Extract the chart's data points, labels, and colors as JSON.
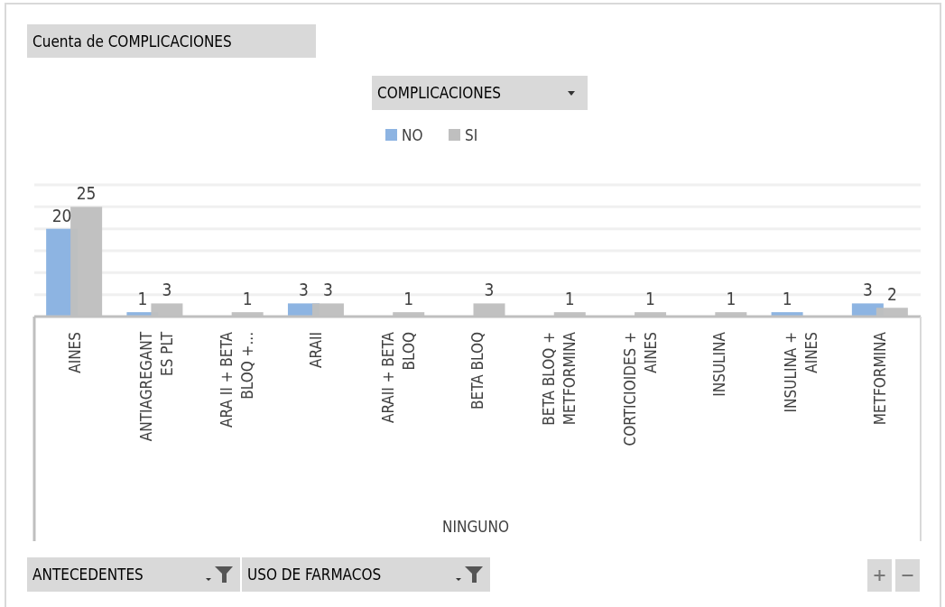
{
  "chart_data": {
    "type": "bar",
    "title": "Cuenta de COMPLICACIONES",
    "legend_title": "COMPLICACIONES",
    "categories": [
      "AINES",
      "ANTIAGREGANT\nES PLT",
      "ARA II + BETA\nBLOQ +...",
      "ARAII",
      "ARAII + BETA\nBLOQ",
      "BETA BLOQ",
      "BETA BLOQ +\nMETFORMINA",
      "CORTICIOIDES +\nAINES",
      "INSULINA",
      "INSULINA +\nAINES",
      "METFORMINA"
    ],
    "series": [
      {
        "name": "NO",
        "color": "#8db4e2",
        "values": [
          20,
          1,
          null,
          3,
          null,
          null,
          null,
          null,
          null,
          1,
          3
        ]
      },
      {
        "name": "SI",
        "color": "#bfbfbf",
        "values": [
          25,
          3,
          1,
          3,
          1,
          3,
          1,
          1,
          1,
          null,
          2
        ]
      }
    ],
    "ylim": [
      0,
      30
    ],
    "yticks": [
      {
        "value": 0,
        "label": null
      },
      {
        "value": 5,
        "label": null
      },
      {
        "value": 10,
        "label": null
      },
      {
        "value": 15,
        "label": null
      },
      {
        "value": 20,
        "label": null
      },
      {
        "value": 25,
        "label": null
      },
      {
        "value": 30,
        "label": null
      }
    ],
    "grid": "y",
    "legend": "top",
    "data_labels": true,
    "tick_labels": "x",
    "annotations": [
      "NINGUNO",
      "ANTECEDENTES",
      "USO DE FARMACOS"
    ]
  }
}
